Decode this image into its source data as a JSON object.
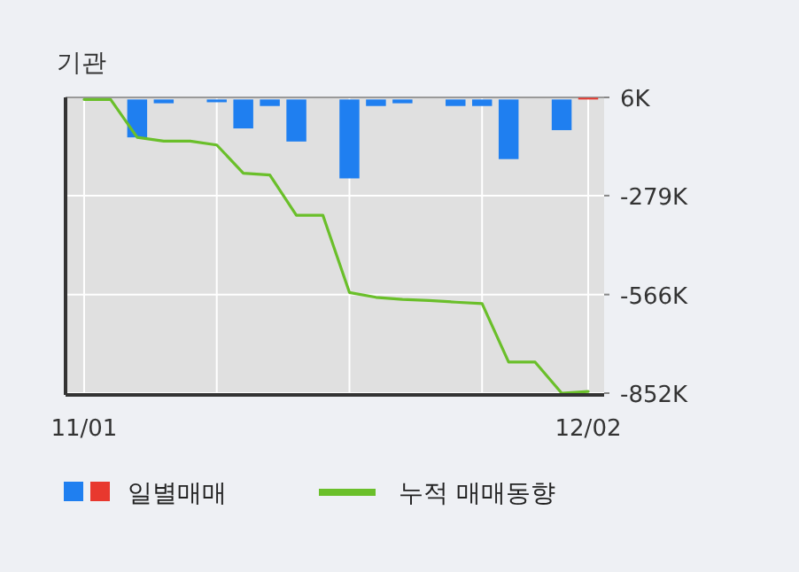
{
  "chart_data": {
    "type": "bar",
    "title": "기관",
    "categories": [
      "11/01",
      null,
      null,
      null,
      null,
      null,
      null,
      null,
      null,
      null,
      null,
      null,
      null,
      null,
      null,
      null,
      null,
      null,
      null,
      "12/02"
    ],
    "series": [
      {
        "name": "일별매매",
        "values": [
          0,
          0,
          -110000,
          -11000,
          0,
          -8000,
          -84000,
          -19000,
          -122000,
          0,
          -229000,
          -19000,
          -11000,
          0,
          -19000,
          -19000,
          -173000,
          0,
          -89000,
          5000
        ],
        "colors": [
          "#1f7ff0",
          "#1f7ff0",
          "#1f7ff0",
          "#1f7ff0",
          "#1f7ff0",
          "#1f7ff0",
          "#1f7ff0",
          "#1f7ff0",
          "#1f7ff0",
          "#1f7ff0",
          "#1f7ff0",
          "#1f7ff0",
          "#1f7ff0",
          "#1f7ff0",
          "#1f7ff0",
          "#1f7ff0",
          "#1f7ff0",
          "#1f7ff0",
          "#1f7ff0",
          "#e8382e"
        ]
      },
      {
        "name": "누적 매매동향",
        "type": "line",
        "color": "#6abf2a",
        "values": [
          0,
          0,
          -110000,
          -121000,
          -121000,
          -132000,
          -214000,
          -219000,
          -336000,
          -336000,
          -560000,
          -574000,
          -580000,
          -583000,
          -588000,
          -592000,
          -762000,
          -762000,
          -852000,
          -847000
        ]
      }
    ],
    "ylim": [
      -852000,
      6000
    ],
    "yticks": [
      {
        "value": 6000,
        "label": "6K"
      },
      {
        "value": -279000,
        "label": "-279K"
      },
      {
        "value": -566000,
        "label": "-566K"
      },
      {
        "value": -852000,
        "label": "-852K"
      }
    ],
    "grid": true,
    "legend": "bottom"
  }
}
